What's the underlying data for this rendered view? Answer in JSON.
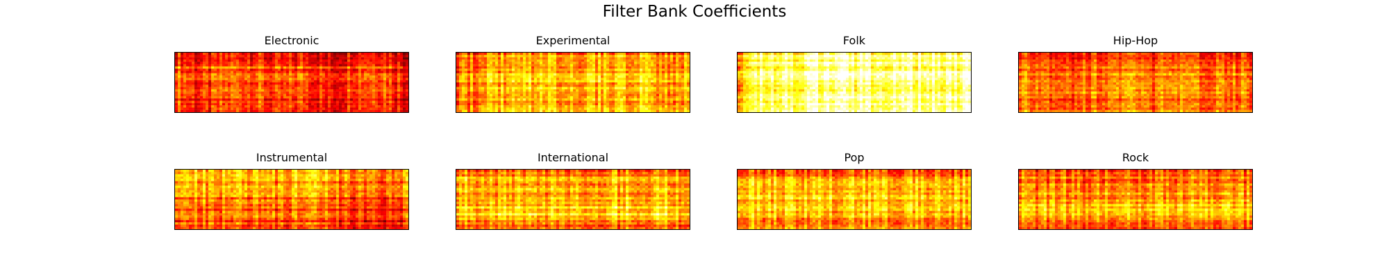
{
  "chart_data": {
    "type": "heatmap",
    "title": "Filter Bank Coefficients",
    "colormap": "hot",
    "colormap_stops": [
      "#000000",
      "#8b0000",
      "#ff0000",
      "#ff8000",
      "#ffff00",
      "#ffffff"
    ],
    "axes_visible": false,
    "grid": false,
    "layout": {
      "rows": 2,
      "cols": 4
    },
    "panels": [
      {
        "name": "Electronic",
        "level": 0.45,
        "band_profile": [
          0.45,
          0.35,
          0.55,
          0.4,
          0.5,
          0.45,
          0.35,
          0.3,
          0.45,
          0.4
        ],
        "column_profile": [
          0.7,
          0.3,
          0.6,
          0.65,
          0.3,
          0.6,
          0.15,
          0.6,
          0.7,
          0.25
        ]
      },
      {
        "name": "Experimental",
        "level": 0.62,
        "band_profile": [
          0.4,
          0.55,
          0.6,
          0.7,
          0.8,
          0.7,
          0.65,
          0.6,
          0.55,
          0.5
        ],
        "column_profile": [
          0.2,
          0.6,
          0.65,
          0.65,
          0.7,
          0.7,
          0.65,
          0.7,
          0.6,
          0.55
        ]
      },
      {
        "name": "Folk",
        "level": 0.86,
        "band_profile": [
          0.85,
          0.9,
          0.88,
          0.9,
          0.92,
          0.9,
          0.88,
          0.86,
          0.9,
          0.95
        ],
        "column_profile": [
          0.1,
          0.85,
          0.8,
          0.95,
          0.9,
          0.92,
          0.8,
          0.9,
          0.85,
          0.95
        ]
      },
      {
        "name": "Hip-Hop",
        "level": 0.55,
        "band_profile": [
          0.35,
          0.4,
          0.5,
          0.55,
          0.6,
          0.55,
          0.5,
          0.55,
          0.6,
          0.7
        ],
        "column_profile": [
          0.55,
          0.6,
          0.4,
          0.55,
          0.6,
          0.45,
          0.55,
          0.4,
          0.65,
          0.5
        ]
      },
      {
        "name": "Instrumental",
        "level": 0.55,
        "band_profile": [
          0.8,
          0.75,
          0.7,
          0.65,
          0.55,
          0.45,
          0.4,
          0.35,
          0.3,
          0.3
        ],
        "column_profile": [
          0.6,
          0.65,
          0.55,
          0.6,
          0.55,
          0.6,
          0.5,
          0.2,
          0.2,
          0.55
        ]
      },
      {
        "name": "International",
        "level": 0.65,
        "band_profile": [
          0.4,
          0.55,
          0.6,
          0.65,
          0.7,
          0.8,
          0.9,
          0.95,
          0.6,
          0.25
        ],
        "column_profile": [
          0.6,
          0.55,
          0.65,
          0.6,
          0.65,
          0.6,
          0.65,
          0.6,
          0.65,
          0.6
        ]
      },
      {
        "name": "Pop",
        "level": 0.62,
        "band_profile": [
          0.35,
          0.55,
          0.6,
          0.7,
          0.75,
          0.8,
          0.75,
          0.55,
          0.45,
          0.6
        ],
        "column_profile": [
          0.65,
          0.6,
          0.55,
          0.65,
          0.6,
          0.55,
          0.6,
          0.65,
          0.55,
          0.6
        ]
      },
      {
        "name": "Rock",
        "level": 0.55,
        "band_profile": [
          0.3,
          0.45,
          0.55,
          0.6,
          0.6,
          0.75,
          0.85,
          0.9,
          0.4,
          0.2
        ],
        "column_profile": [
          0.55,
          0.6,
          0.55,
          0.6,
          0.65,
          0.55,
          0.6,
          0.55,
          0.6,
          0.55
        ]
      }
    ]
  }
}
